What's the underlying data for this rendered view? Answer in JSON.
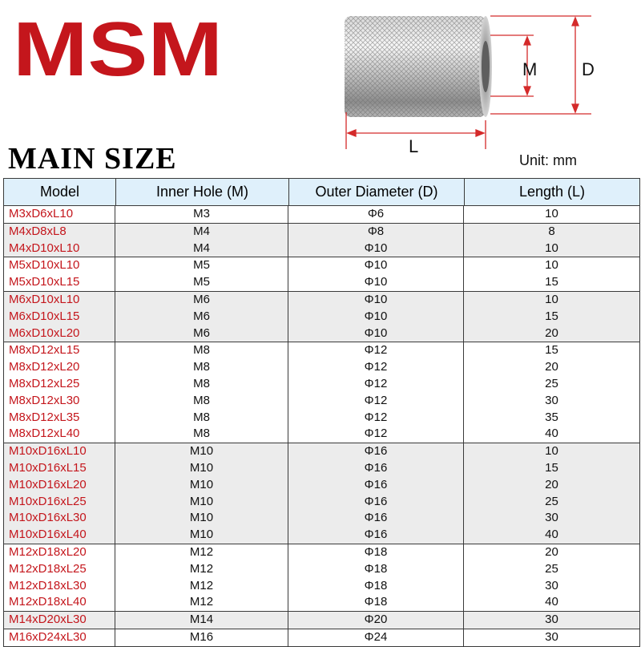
{
  "logo": {
    "text": "MSM",
    "color": "#c4161c"
  },
  "diagram": {
    "label_m": "M",
    "label_d": "D",
    "label_l": "L",
    "dimension_color": "#d42a2a"
  },
  "title": "MAIN SIZE",
  "unit": "Unit: mm",
  "table": {
    "headers": [
      "Model",
      "Inner Hole (M)",
      "Outer Diameter (D)",
      "Length (L)"
    ],
    "groups": [
      {
        "shaded": false,
        "rows": [
          [
            "M3xD6xL10",
            "M3",
            "Φ6",
            "10"
          ]
        ]
      },
      {
        "shaded": true,
        "rows": [
          [
            "M4xD8xL8",
            "M4",
            "Φ8",
            "8"
          ],
          [
            "M4xD10xL10",
            "M4",
            "Φ10",
            "10"
          ]
        ]
      },
      {
        "shaded": false,
        "rows": [
          [
            "M5xD10xL10",
            "M5",
            "Φ10",
            "10"
          ],
          [
            "M5xD10xL15",
            "M5",
            "Φ10",
            "15"
          ]
        ]
      },
      {
        "shaded": true,
        "rows": [
          [
            "M6xD10xL10",
            "M6",
            "Φ10",
            "10"
          ],
          [
            "M6xD10xL15",
            "M6",
            "Φ10",
            "15"
          ],
          [
            "M6xD10xL20",
            "M6",
            "Φ10",
            "20"
          ]
        ]
      },
      {
        "shaded": false,
        "rows": [
          [
            "M8xD12xL15",
            "M8",
            "Φ12",
            "15"
          ],
          [
            "M8xD12xL20",
            "M8",
            "Φ12",
            "20"
          ],
          [
            "M8xD12xL25",
            "M8",
            "Φ12",
            "25"
          ],
          [
            "M8xD12xL30",
            "M8",
            "Φ12",
            "30"
          ],
          [
            "M8xD12xL35",
            "M8",
            "Φ12",
            "35"
          ],
          [
            "M8xD12xL40",
            "M8",
            "Φ12",
            "40"
          ]
        ]
      },
      {
        "shaded": true,
        "rows": [
          [
            "M10xD16xL10",
            "M10",
            "Φ16",
            "10"
          ],
          [
            "M10xD16xL15",
            "M10",
            "Φ16",
            "15"
          ],
          [
            "M10xD16xL20",
            "M10",
            "Φ16",
            "20"
          ],
          [
            "M10xD16xL25",
            "M10",
            "Φ16",
            "25"
          ],
          [
            "M10xD16xL30",
            "M10",
            "Φ16",
            "30"
          ],
          [
            "M10xD16xL40",
            "M10",
            "Φ16",
            "40"
          ]
        ]
      },
      {
        "shaded": false,
        "rows": [
          [
            "M12xD18xL20",
            "M12",
            "Φ18",
            "20"
          ],
          [
            "M12xD18xL25",
            "M12",
            "Φ18",
            "25"
          ],
          [
            "M12xD18xL30",
            "M12",
            "Φ18",
            "30"
          ],
          [
            "M12xD18xL40",
            "M12",
            "Φ18",
            "40"
          ]
        ]
      },
      {
        "shaded": true,
        "rows": [
          [
            "M14xD20xL30",
            "M14",
            "Φ20",
            "30"
          ]
        ]
      },
      {
        "shaded": false,
        "rows": [
          [
            "M16xD24xL30",
            "M16",
            "Φ24",
            "30"
          ]
        ]
      }
    ]
  }
}
